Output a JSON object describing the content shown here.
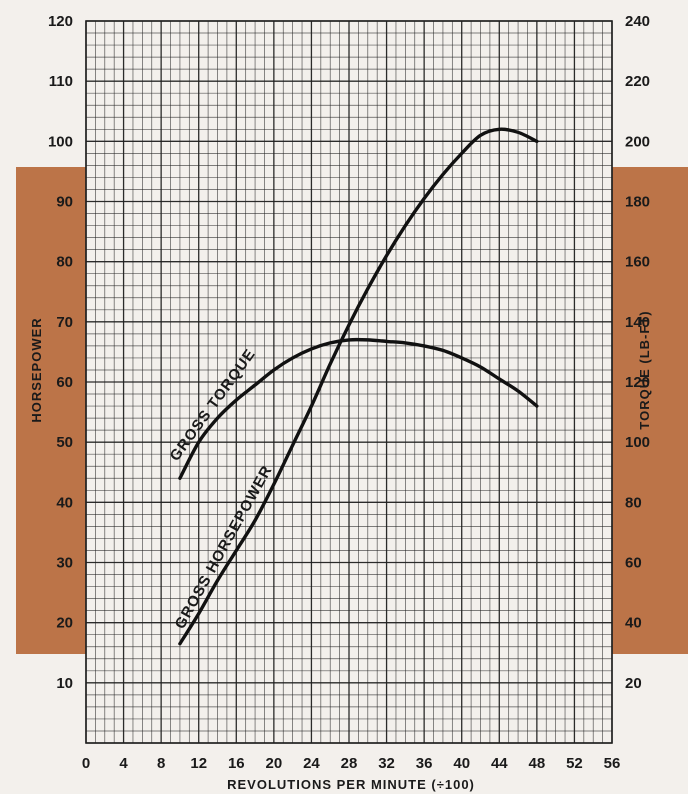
{
  "colors": {
    "paper": "#f3f0ec",
    "band": "#bc7448",
    "grid": "#202020",
    "curve": "#111111",
    "text": "#1a1a1a"
  },
  "chart_data": {
    "type": "line",
    "xlabel": "REVOLUTIONS PER MINUTE (÷100)",
    "ylabel_left": "HORSEPOWER",
    "ylabel_right": "TORQUE (LB-FT)",
    "xlim": [
      0,
      56
    ],
    "ylim_left": [
      0,
      120
    ],
    "ylim_right": [
      0,
      240
    ],
    "x_ticks": [
      0,
      4,
      8,
      12,
      16,
      20,
      24,
      28,
      32,
      36,
      40,
      44,
      48,
      52,
      56
    ],
    "y_ticks_left": [
      10,
      20,
      30,
      40,
      50,
      60,
      70,
      80,
      90,
      100,
      110,
      120
    ],
    "y_ticks_right": [
      20,
      40,
      60,
      80,
      100,
      120,
      140,
      160,
      180,
      200,
      220,
      240
    ],
    "grid": true,
    "series": [
      {
        "name": "GROSS HORSEPOWER",
        "axis": "left",
        "x": [
          10,
          12,
          14,
          16,
          18,
          20,
          22,
          24,
          26,
          28,
          30,
          32,
          34,
          36,
          38,
          40,
          42,
          44,
          46,
          48
        ],
        "y": [
          16.5,
          21.5,
          27,
          32,
          37,
          43,
          49.5,
          56,
          63,
          69.5,
          75.5,
          81,
          86,
          90.5,
          94.5,
          98,
          101,
          102,
          101.5,
          100
        ]
      },
      {
        "name": "GROSS TORQUE",
        "axis": "right",
        "x": [
          10,
          12,
          14,
          16,
          18,
          20,
          22,
          24,
          26,
          28,
          30,
          32,
          34,
          36,
          38,
          40,
          42,
          44,
          46,
          48
        ],
        "y": [
          88,
          100,
          108,
          114,
          119,
          124,
          128,
          131,
          133,
          134,
          134,
          133.5,
          133,
          132,
          130.5,
          128,
          125,
          121,
          117,
          112
        ]
      }
    ]
  }
}
